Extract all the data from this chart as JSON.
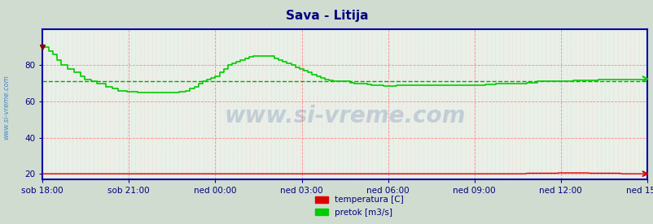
{
  "title": "Sava - Litija",
  "title_color": "#000080",
  "title_fontsize": 11,
  "bg_color": "#e8f0e8",
  "outer_bg_color": "#d0dcd0",
  "x_labels": [
    "sob 18:00",
    "sob 21:00",
    "ned 00:00",
    "ned 03:00",
    "ned 06:00",
    "ned 09:00",
    "ned 12:00",
    "ned 15:00"
  ],
  "ylim": [
    17,
    100
  ],
  "yticks": [
    20,
    40,
    60,
    80
  ],
  "ylabel_color": "#000080",
  "grid_color_major": "#ff8888",
  "grid_color_minor": "#ffbbbb",
  "watermark": "www.si-vreme.com",
  "watermark_color": "#1a3a8a",
  "left_label": "www.si-vreme.com",
  "left_label_color": "#4488cc",
  "border_color": "#0000aa",
  "temp_color": "#dd0000",
  "flow_color": "#00cc00",
  "flow_avg_color": "#00aa00",
  "legend_temp": "temperatura [C]",
  "legend_flow": "pretok [m3/s]"
}
